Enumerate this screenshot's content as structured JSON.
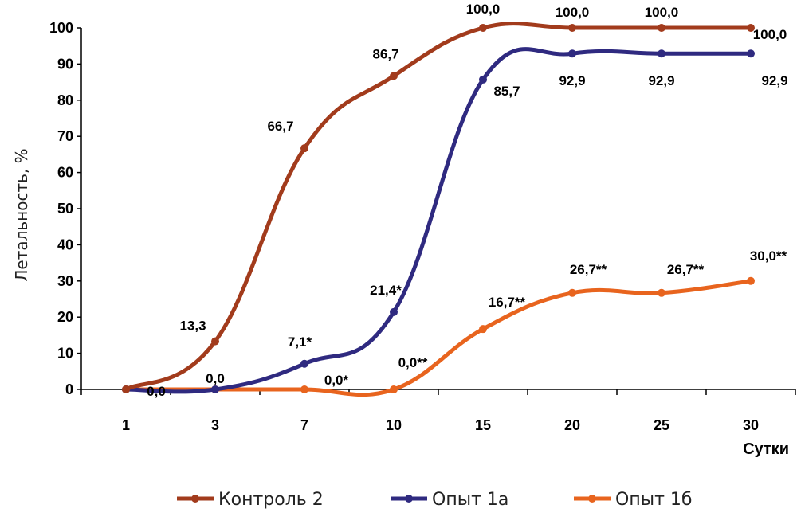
{
  "chart_data": {
    "type": "line",
    "categories": [
      "1",
      "3",
      "7",
      "10",
      "15",
      "20",
      "25",
      "30"
    ],
    "ylabel": "Летальность, %",
    "xlabel": "Сутки",
    "ylim": [
      0,
      100
    ],
    "yticks": [
      "0",
      "10",
      "20",
      "30",
      "40",
      "50",
      "60",
      "70",
      "80",
      "90",
      "100"
    ],
    "grid": false,
    "legend_position": "bottom",
    "series": [
      {
        "name": "Контроль 2",
        "color": "#a23b1c",
        "values": [
          0,
          13.3,
          66.7,
          86.7,
          100,
          100,
          100,
          100
        ],
        "labels": [
          "",
          "13,3",
          "66,7",
          "86,7",
          "100,0",
          "100,0",
          "100,0",
          "100,0"
        ]
      },
      {
        "name": "Опыт 1а",
        "color": "#2f2a80",
        "values": [
          0,
          0,
          7.1,
          21.4,
          85.7,
          92.9,
          92.9,
          92.9
        ],
        "labels": [
          "0,0",
          "0,0",
          "7,1*",
          "21,4*",
          "85,7",
          "92,9",
          "92,9",
          "92,9"
        ]
      },
      {
        "name": "Опыт 1б",
        "color": "#e8641e",
        "values": [
          0,
          0,
          0,
          0,
          16.7,
          26.7,
          26.7,
          30
        ],
        "labels": [
          "",
          "",
          "0,0*",
          "0,0**",
          "16,7**",
          "26,7**",
          "26,7**",
          "30,0**"
        ]
      }
    ]
  }
}
